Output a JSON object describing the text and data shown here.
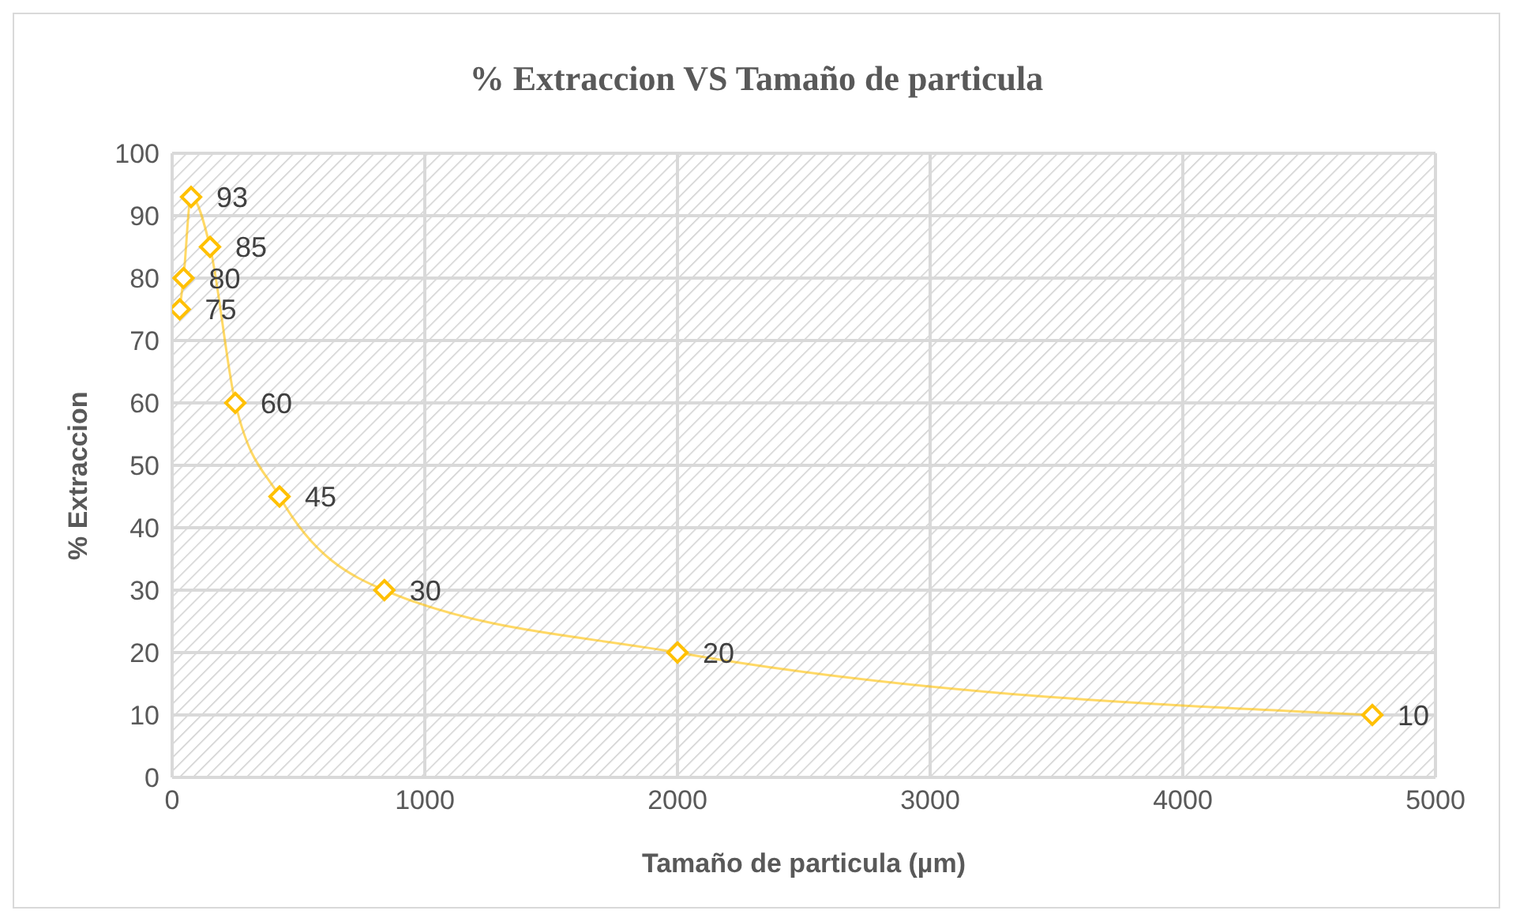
{
  "chart_data": {
    "type": "line",
    "title": "% Extraccion VS Tamaño de particula",
    "xlabel": "Tamaño de particula (µm)",
    "ylabel": "% Extraccion",
    "x": [
      30,
      45,
      75,
      150,
      250,
      425,
      840,
      2000,
      4750
    ],
    "series": [
      {
        "color": "#ffc000",
        "values": [
          75,
          80,
          93,
          85,
          60,
          45,
          30,
          20,
          10
        ]
      }
    ],
    "xlim": [
      0,
      5000
    ],
    "xticks": [
      0,
      1000,
      2000,
      3000,
      4000,
      5000
    ],
    "ylim": [
      0,
      100
    ],
    "yticks": [
      0,
      10,
      20,
      30,
      40,
      50,
      60,
      70,
      80,
      90,
      100
    ],
    "grid": true,
    "marker": "diamond",
    "data_labels": true,
    "legend": false
  }
}
